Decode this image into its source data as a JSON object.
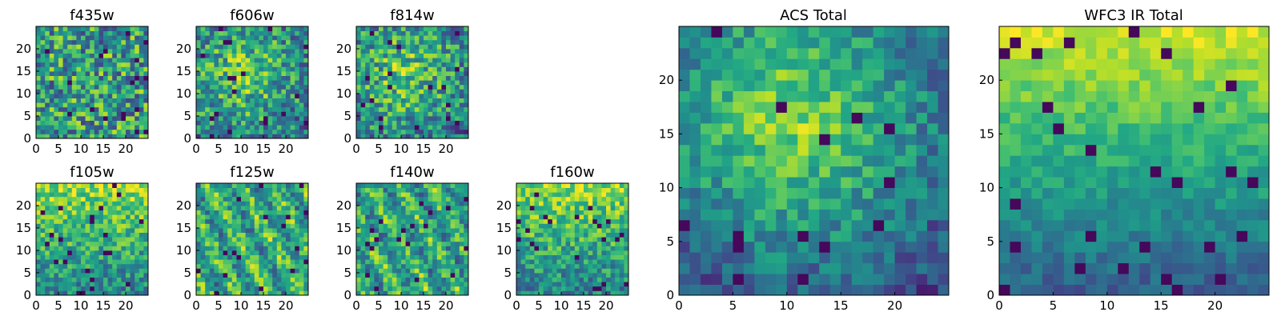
{
  "figure_description_free": true,
  "colormap": "viridis",
  "chart_data": [
    {
      "type": "heatmap",
      "title": "f435w",
      "xlim": [
        0,
        25
      ],
      "ylim": [
        0,
        25
      ],
      "xticks": [
        0,
        5,
        10,
        15,
        20
      ],
      "yticks": [
        0,
        5,
        10,
        15,
        20
      ],
      "x_tick_labels": [
        "0",
        "5",
        "10",
        "15",
        "20"
      ],
      "y_tick_labels": [
        "0",
        "5",
        "10",
        "15",
        "20"
      ],
      "grid": false,
      "value_range": [
        0,
        1
      ],
      "texture": "noisy-flat",
      "values": []
    },
    {
      "type": "heatmap",
      "title": "f606w",
      "xlim": [
        0,
        25
      ],
      "ylim": [
        0,
        25
      ],
      "xticks": [
        0,
        5,
        10,
        15,
        20
      ],
      "yticks": [
        0,
        5,
        10,
        15,
        20
      ],
      "x_tick_labels": [
        "0",
        "5",
        "10",
        "15",
        "20"
      ],
      "y_tick_labels": [
        "0",
        "5",
        "10",
        "15",
        "20"
      ],
      "grid": false,
      "value_range": [
        0,
        1
      ],
      "texture": "noisy-center-bright",
      "values": []
    },
    {
      "type": "heatmap",
      "title": "f814w",
      "xlim": [
        0,
        25
      ],
      "ylim": [
        0,
        25
      ],
      "xticks": [
        0,
        5,
        10,
        15,
        20
      ],
      "yticks": [
        0,
        5,
        10,
        15,
        20
      ],
      "x_tick_labels": [
        "0",
        "5",
        "10",
        "15",
        "20"
      ],
      "y_tick_labels": [
        "0",
        "5",
        "10",
        "15",
        "20"
      ],
      "grid": false,
      "value_range": [
        0,
        1
      ],
      "texture": "noisy-center-bright",
      "values": []
    },
    {
      "type": "heatmap",
      "title": "f105w",
      "xlim": [
        0,
        25
      ],
      "ylim": [
        0,
        25
      ],
      "xticks": [
        0,
        5,
        10,
        15,
        20
      ],
      "yticks": [
        0,
        5,
        10,
        15,
        20
      ],
      "x_tick_labels": [
        "0",
        "5",
        "10",
        "15",
        "20"
      ],
      "y_tick_labels": [
        "0",
        "5",
        "10",
        "15",
        "20"
      ],
      "grid": false,
      "value_range": [
        0,
        1
      ],
      "texture": "smooth-top-bright",
      "values": []
    },
    {
      "type": "heatmap",
      "title": "f125w",
      "xlim": [
        0,
        25
      ],
      "ylim": [
        0,
        25
      ],
      "xticks": [
        0,
        5,
        10,
        15,
        20
      ],
      "yticks": [
        0,
        5,
        10,
        15,
        20
      ],
      "x_tick_labels": [
        "0",
        "5",
        "10",
        "15",
        "20"
      ],
      "y_tick_labels": [
        "0",
        "5",
        "10",
        "15",
        "20"
      ],
      "grid": false,
      "value_range": [
        0,
        1
      ],
      "texture": "smooth-mottled",
      "values": []
    },
    {
      "type": "heatmap",
      "title": "f140w",
      "xlim": [
        0,
        25
      ],
      "ylim": [
        0,
        25
      ],
      "xticks": [
        0,
        5,
        10,
        15,
        20
      ],
      "yticks": [
        0,
        5,
        10,
        15,
        20
      ],
      "x_tick_labels": [
        "0",
        "5",
        "10",
        "15",
        "20"
      ],
      "y_tick_labels": [
        "0",
        "5",
        "10",
        "15",
        "20"
      ],
      "grid": false,
      "value_range": [
        0,
        1
      ],
      "texture": "smooth-mottled",
      "values": []
    },
    {
      "type": "heatmap",
      "title": "f160w",
      "xlim": [
        0,
        25
      ],
      "ylim": [
        0,
        25
      ],
      "xticks": [
        0,
        5,
        10,
        15,
        20
      ],
      "yticks": [
        0,
        5,
        10,
        15,
        20
      ],
      "x_tick_labels": [
        "0",
        "5",
        "10",
        "15",
        "20"
      ],
      "y_tick_labels": [
        "0",
        "5",
        "10",
        "15",
        "20"
      ],
      "grid": false,
      "value_range": [
        0,
        1
      ],
      "texture": "smooth-top-bright",
      "values": []
    },
    {
      "type": "heatmap",
      "title": "ACS Total",
      "xlim": [
        0,
        25
      ],
      "ylim": [
        0,
        25
      ],
      "xticks": [
        0,
        5,
        10,
        15,
        20
      ],
      "yticks": [
        0,
        5,
        10,
        15,
        20
      ],
      "x_tick_labels": [
        "0",
        "5",
        "10",
        "15",
        "20"
      ],
      "y_tick_labels": [
        "0",
        "5",
        "10",
        "15",
        "20"
      ],
      "grid": false,
      "value_range": [
        0,
        1
      ],
      "texture": "blob-center",
      "values": []
    },
    {
      "type": "heatmap",
      "title": "WFC3 IR Total",
      "xlim": [
        0,
        25
      ],
      "ylim": [
        0,
        25
      ],
      "xticks": [
        0,
        5,
        10,
        15,
        20
      ],
      "yticks": [
        0,
        5,
        10,
        15,
        20
      ],
      "x_tick_labels": [
        "0",
        "5",
        "10",
        "15",
        "20"
      ],
      "y_tick_labels": [
        "0",
        "5",
        "10",
        "15",
        "20"
      ],
      "grid": false,
      "value_range": [
        0,
        1
      ],
      "texture": "gradient-top",
      "values": []
    }
  ]
}
